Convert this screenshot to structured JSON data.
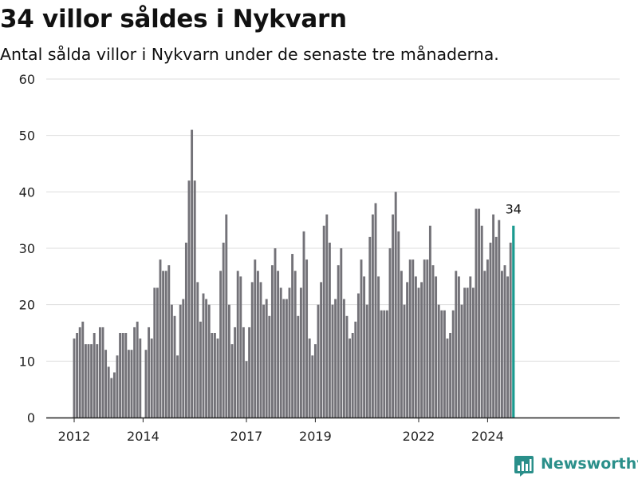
{
  "title": "34 villor såldes i Nykvarn",
  "subtitle": "Antal sålda villor i Nykvarn under de senaste tre månaderna.",
  "brand": {
    "name": "Newsworthy",
    "icon": "bar-chart-logo-icon",
    "color": "#2a8f8a"
  },
  "colors": {
    "bar": "#737278",
    "highlight": "#1a9a8f",
    "grid": "#dddddd",
    "axis": "#222222"
  },
  "chart_data": {
    "type": "bar",
    "x_start": "2012-01",
    "x_tick_labels": [
      "2012",
      "2014",
      "2017",
      "2019",
      "2022",
      "2024"
    ],
    "x_tick_dates": [
      "2012-01",
      "2014-01",
      "2017-01",
      "2019-01",
      "2022-01",
      "2024-01"
    ],
    "ylim": [
      0,
      60
    ],
    "y_ticks": [
      0,
      10,
      20,
      30,
      40,
      50,
      60
    ],
    "grid": true,
    "highlight_last": true,
    "last_value_label": "34",
    "values": [
      14,
      15,
      16,
      17,
      13,
      13,
      13,
      15,
      13,
      16,
      16,
      12,
      9,
      7,
      8,
      11,
      15,
      15,
      15,
      12,
      12,
      16,
      17,
      14,
      null,
      12,
      16,
      14,
      23,
      23,
      28,
      26,
      26,
      27,
      20,
      18,
      11,
      20,
      21,
      31,
      42,
      51,
      42,
      24,
      17,
      22,
      21,
      20,
      15,
      15,
      14,
      26,
      31,
      36,
      20,
      13,
      16,
      26,
      25,
      16,
      10,
      16,
      24,
      28,
      26,
      24,
      20,
      21,
      18,
      27,
      30,
      26,
      23,
      21,
      21,
      23,
      29,
      26,
      18,
      23,
      33,
      28,
      14,
      11,
      13,
      20,
      24,
      34,
      36,
      31,
      20,
      21,
      27,
      30,
      21,
      18,
      14,
      15,
      17,
      22,
      28,
      25,
      20,
      32,
      36,
      38,
      25,
      19,
      19,
      19,
      30,
      36,
      40,
      33,
      26,
      20,
      24,
      28,
      28,
      25,
      23,
      24,
      28,
      28,
      34,
      27,
      25,
      20,
      19,
      19,
      14,
      15,
      19,
      26,
      25,
      20,
      23,
      23,
      25,
      23,
      37,
      37,
      34,
      26,
      28,
      31,
      36,
      32,
      35,
      26,
      27,
      25,
      31,
      34
    ]
  }
}
